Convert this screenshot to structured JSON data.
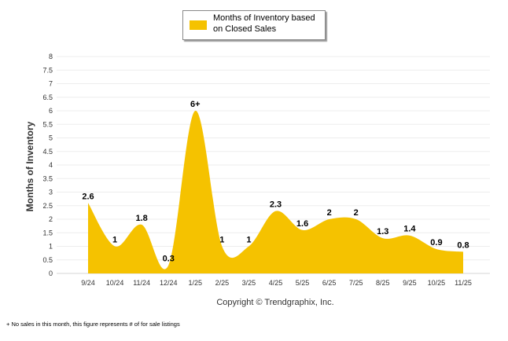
{
  "chart_data": {
    "type": "area",
    "title": "",
    "xlabel": "",
    "ylabel": "Months of Inventory",
    "ylim": [
      0,
      8
    ],
    "yticks": [
      "0",
      "0.5",
      "1",
      "1.5",
      "2",
      "2.5",
      "3",
      "3.5",
      "4",
      "4.5",
      "5",
      "5.5",
      "6",
      "6.5",
      "7",
      "7.5",
      "8"
    ],
    "grid": true,
    "legend_position": "top-center",
    "categories": [
      "9/24",
      "10/24",
      "11/24",
      "12/24",
      "1/25",
      "2/25",
      "3/25",
      "4/25",
      "5/25",
      "6/25",
      "7/25",
      "8/25",
      "9/25",
      "10/25",
      "11/25"
    ],
    "series": [
      {
        "name": "Months of Inventory based on Closed Sales",
        "color": "#F5C200",
        "values": [
          2.6,
          1,
          1.8,
          0.3,
          6,
          1,
          1,
          2.3,
          1.6,
          2,
          2,
          1.3,
          1.4,
          0.9,
          0.8
        ],
        "data_labels": [
          "2.6",
          "1",
          "1.8",
          "0.3",
          "6+",
          "1",
          "1",
          "2.3",
          "1.6",
          "2",
          "2",
          "1.3",
          "1.4",
          "0.9",
          "0.8"
        ]
      }
    ],
    "annotation": "Copyright © Trendgraphix, Inc."
  },
  "legend": {
    "line1": "Months of Inventory based",
    "line2": "on Closed Sales"
  },
  "footnote": "+ No sales in this month, this figure represents # of for sale listings"
}
